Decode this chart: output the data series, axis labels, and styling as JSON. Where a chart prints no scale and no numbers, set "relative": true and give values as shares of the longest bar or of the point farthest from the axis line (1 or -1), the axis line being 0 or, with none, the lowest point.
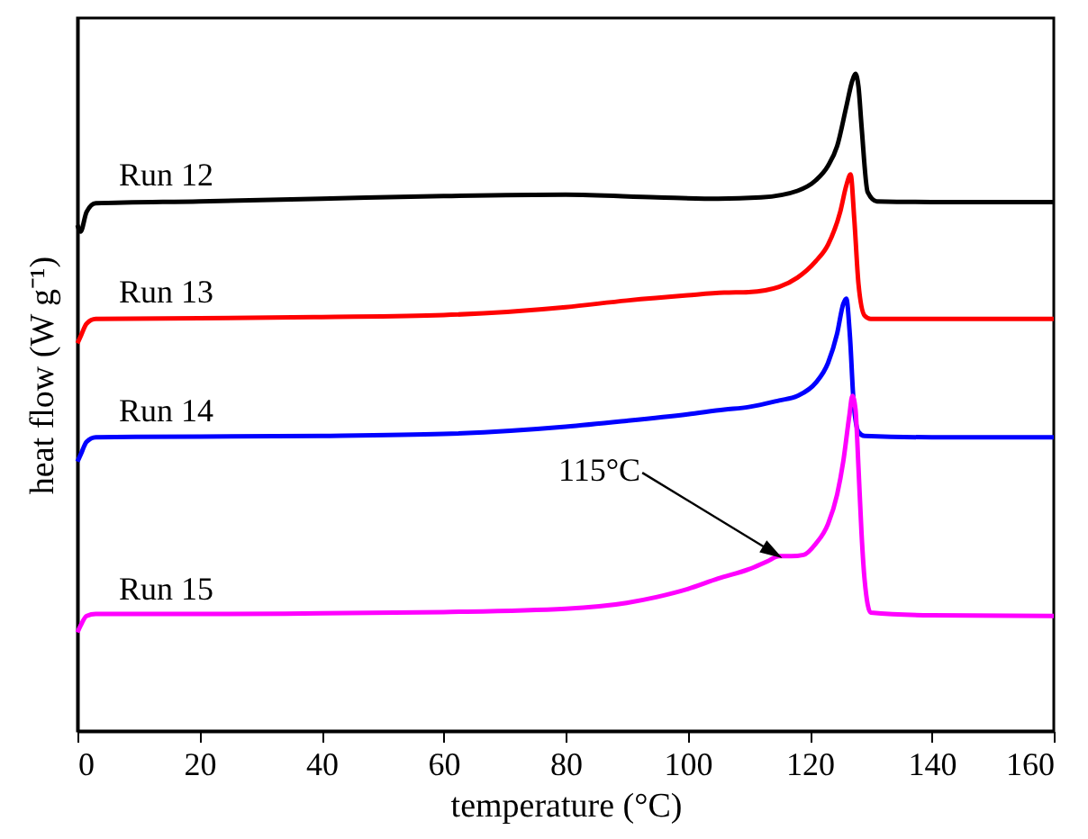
{
  "chart_data": {
    "type": "line",
    "xlabel": "temperature (°C)",
    "ylabel": "heat flow (W g⁻¹)",
    "xlim": [
      0,
      160
    ],
    "xticks": [
      0,
      20,
      40,
      60,
      80,
      100,
      120,
      140,
      160
    ],
    "relative": true,
    "tick_labels": "x",
    "series": [
      {
        "name": "Run 12",
        "color": "#000000",
        "x": [
          0,
          0.5,
          1.5,
          3,
          20,
          40,
          60,
          80,
          95,
          105,
          112,
          118,
          121,
          123,
          124.5,
          126,
          127,
          127.5,
          128,
          128.5,
          129.5,
          131,
          140,
          160
        ],
        "values": [
          0.77,
          0.76,
          0.79,
          0.803,
          0.806,
          0.81,
          0.814,
          0.816,
          0.812,
          0.81,
          0.812,
          0.822,
          0.838,
          0.86,
          0.89,
          0.95,
          0.99,
          1,
          0.98,
          0.92,
          0.82,
          0.806,
          0.805,
          0.805
        ]
      },
      {
        "name": "Run 13",
        "color": "#ff0000",
        "x": [
          0,
          0.5,
          1.5,
          3,
          20,
          40,
          60,
          80,
          90,
          100,
          106,
          110,
          115,
          118,
          121,
          123,
          125,
          126,
          126.7,
          127.3,
          128,
          129,
          130,
          140,
          160
        ],
        "values": [
          0.59,
          0.6,
          0.62,
          0.627,
          0.628,
          0.63,
          0.633,
          0.645,
          0.655,
          0.663,
          0.667,
          0.668,
          0.676,
          0.69,
          0.715,
          0.74,
          0.79,
          0.83,
          0.847,
          0.78,
          0.68,
          0.632,
          0.627,
          0.627,
          0.627
        ]
      },
      {
        "name": "Run 14",
        "color": "#0000ff",
        "x": [
          0,
          0.5,
          1.5,
          3,
          20,
          40,
          60,
          80,
          90,
          100,
          106,
          110,
          115,
          118,
          121,
          123,
          124.5,
          125.5,
          126,
          126.6,
          127.2,
          128,
          129,
          140,
          160
        ],
        "values": [
          0.41,
          0.42,
          0.44,
          0.447,
          0.448,
          0.449,
          0.452,
          0.463,
          0.472,
          0.482,
          0.489,
          0.493,
          0.503,
          0.51,
          0.53,
          0.56,
          0.605,
          0.65,
          0.658,
          0.6,
          0.5,
          0.455,
          0.449,
          0.447,
          0.447
        ]
      },
      {
        "name": "Run 15",
        "color": "#ff00ff",
        "x": [
          0,
          0.5,
          1.5,
          3,
          20,
          40,
          60,
          80,
          90,
          95,
          100,
          105,
          110,
          113,
          115,
          117,
          119,
          121,
          123,
          124.5,
          125.5,
          126.5,
          127,
          127.5,
          128,
          128.5,
          129,
          130,
          140,
          160
        ],
        "values": [
          0.15,
          0.16,
          0.175,
          0.178,
          0.178,
          0.179,
          0.181,
          0.186,
          0.195,
          0.204,
          0.216,
          0.232,
          0.246,
          0.258,
          0.266,
          0.266,
          0.268,
          0.285,
          0.315,
          0.36,
          0.41,
          0.48,
          0.51,
          0.49,
          0.4,
          0.3,
          0.23,
          0.18,
          0.176,
          0.175
        ]
      }
    ],
    "annotations": [
      {
        "text": "115°C",
        "x": 115,
        "y": 0.266
      }
    ]
  }
}
